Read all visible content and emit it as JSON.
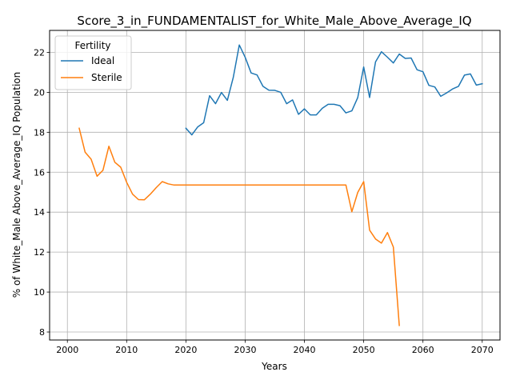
{
  "chart_data": {
    "type": "line",
    "title": "Score_3_in_FUNDAMENTALIST_for_White_Male_Above_Average_IQ",
    "xlabel": "Years",
    "ylabel": "% of White_Male Above_Average_IQ Population",
    "xlim": [
      1997,
      2073
    ],
    "ylim": [
      7.6,
      23.1
    ],
    "xticks": [
      2000,
      2010,
      2020,
      2030,
      2040,
      2050,
      2060,
      2070
    ],
    "yticks": [
      8,
      10,
      12,
      14,
      16,
      18,
      20,
      22
    ],
    "grid": true,
    "legend": {
      "title": "Fertility",
      "position": "top-left"
    },
    "series": [
      {
        "name": "Ideal",
        "color": "#1f77b4",
        "x": [
          2020,
          2021,
          2022,
          2023,
          2024,
          2025,
          2026,
          2027,
          2028,
          2029,
          2030,
          2031,
          2032,
          2033,
          2034,
          2035,
          2036,
          2037,
          2038,
          2039,
          2040,
          2041,
          2042,
          2043,
          2044,
          2045,
          2046,
          2047,
          2048,
          2049,
          2050,
          2051,
          2052,
          2053,
          2054,
          2055,
          2056,
          2057,
          2058,
          2059,
          2060,
          2061,
          2062,
          2063,
          2064,
          2065,
          2066,
          2067,
          2068,
          2069,
          2070
        ],
        "y": [
          18.2,
          17.87,
          18.27,
          18.48,
          19.83,
          19.43,
          19.99,
          19.6,
          20.75,
          22.37,
          21.75,
          20.97,
          20.87,
          20.3,
          20.11,
          20.1,
          20.0,
          19.43,
          19.62,
          18.9,
          19.17,
          18.87,
          18.87,
          19.2,
          19.4,
          19.4,
          19.33,
          18.97,
          19.07,
          19.74,
          21.27,
          19.74,
          21.52,
          22.03,
          21.76,
          21.47,
          21.92,
          21.7,
          21.72,
          21.13,
          21.03,
          20.35,
          20.27,
          19.8,
          19.97,
          20.17,
          20.3,
          20.86,
          20.92,
          20.36,
          20.43
        ]
      },
      {
        "name": "Sterile",
        "color": "#ff7f0e",
        "x": [
          2002,
          2003,
          2004,
          2005,
          2006,
          2007,
          2008,
          2009,
          2010,
          2011,
          2012,
          2013,
          2014,
          2015,
          2016,
          2017,
          2018,
          2019,
          2020,
          2025,
          2030,
          2035,
          2040,
          2045,
          2046,
          2047,
          2048,
          2049,
          2050,
          2051,
          2052,
          2053,
          2054,
          2055,
          2056
        ],
        "y": [
          18.2,
          17.0,
          16.65,
          15.8,
          16.1,
          17.3,
          16.5,
          16.25,
          15.5,
          14.9,
          14.63,
          14.62,
          14.9,
          15.23,
          15.53,
          15.42,
          15.36,
          15.36,
          15.36,
          15.36,
          15.36,
          15.36,
          15.36,
          15.36,
          15.36,
          15.36,
          14.02,
          14.99,
          15.53,
          13.1,
          12.66,
          12.45,
          12.98,
          12.25,
          8.33
        ]
      }
    ]
  }
}
